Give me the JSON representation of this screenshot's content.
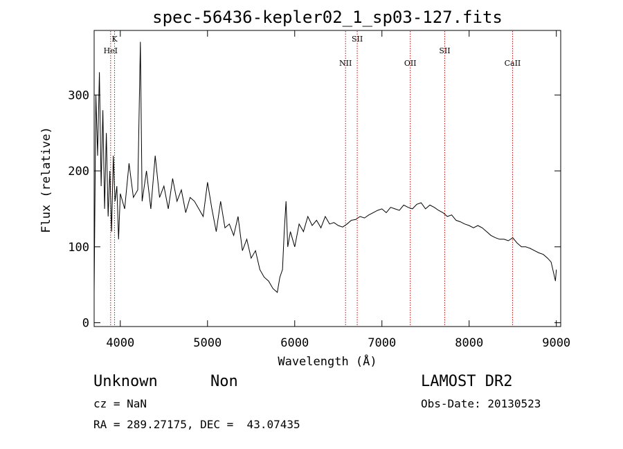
{
  "chart_data": {
    "type": "line",
    "title": "spec-56436-kepler02_1_sp03-127.fits",
    "xlabel": "Wavelength (Å)",
    "ylabel": "Flux (relative)",
    "xlim": [
      3700,
      9050
    ],
    "ylim": [
      -5,
      385
    ],
    "x_ticks": [
      4000,
      5000,
      6000,
      7000,
      8000,
      9000
    ],
    "y_ticks": [
      0,
      100,
      200,
      300
    ],
    "grid": false,
    "series": [
      {
        "x": [
          3700,
          3720,
          3740,
          3760,
          3780,
          3800,
          3820,
          3840,
          3860,
          3880,
          3900,
          3920,
          3940,
          3960,
          3980,
          4000,
          4050,
          4100,
          4150,
          4200,
          4230,
          4250,
          4300,
          4350,
          4400,
          4450,
          4500,
          4550,
          4600,
          4650,
          4700,
          4750,
          4800,
          4850,
          4900,
          4950,
          5000,
          5050,
          5100,
          5150,
          5200,
          5250,
          5300,
          5350,
          5400,
          5450,
          5500,
          5550,
          5600,
          5650,
          5700,
          5750,
          5800,
          5830,
          5860,
          5880,
          5900,
          5920,
          5950,
          6000,
          6050,
          6100,
          6150,
          6200,
          6250,
          6300,
          6350,
          6400,
          6450,
          6500,
          6550,
          6600,
          6650,
          6700,
          6750,
          6800,
          6850,
          6900,
          6950,
          7000,
          7050,
          7100,
          7150,
          7200,
          7250,
          7300,
          7350,
          7400,
          7450,
          7500,
          7550,
          7600,
          7650,
          7700,
          7750,
          7800,
          7850,
          7900,
          7950,
          8000,
          8050,
          8100,
          8150,
          8200,
          8250,
          8300,
          8350,
          8400,
          8450,
          8500,
          8550,
          8600,
          8650,
          8700,
          8750,
          8800,
          8850,
          8900,
          8940,
          8970,
          8990,
          9000
        ],
        "y": [
          40,
          300,
          220,
          330,
          180,
          280,
          150,
          250,
          140,
          200,
          120,
          220,
          160,
          180,
          110,
          170,
          150,
          210,
          165,
          175,
          370,
          160,
          200,
          150,
          220,
          165,
          180,
          150,
          190,
          160,
          175,
          145,
          165,
          160,
          150,
          140,
          185,
          150,
          120,
          160,
          125,
          130,
          115,
          140,
          95,
          110,
          85,
          95,
          70,
          60,
          55,
          45,
          40,
          60,
          70,
          120,
          160,
          100,
          120,
          100,
          130,
          120,
          140,
          128,
          135,
          125,
          140,
          130,
          132,
          128,
          126,
          130,
          135,
          136,
          140,
          138,
          142,
          145,
          148,
          150,
          145,
          152,
          150,
          148,
          155,
          152,
          150,
          156,
          158,
          150,
          155,
          152,
          148,
          145,
          140,
          142,
          135,
          133,
          130,
          128,
          125,
          128,
          125,
          120,
          115,
          112,
          110,
          110,
          108,
          112,
          105,
          100,
          100,
          98,
          95,
          92,
          90,
          85,
          80,
          65,
          55,
          70
        ]
      }
    ],
    "line_markers": [
      {
        "label": "K",
        "x": 3934,
        "row": 0
      },
      {
        "label": "HeI",
        "x": 3889,
        "row": 1
      },
      {
        "label": "NII",
        "x": 6583,
        "row": 2
      },
      {
        "label": "SII",
        "x": 6717,
        "row": 0
      },
      {
        "label": "OII",
        "x": 7325,
        "row": 2
      },
      {
        "label": "SII",
        "x": 7720,
        "row": 1
      },
      {
        "label": "CaII",
        "x": 8498,
        "row": 2
      }
    ],
    "colors": {
      "line": "#000000",
      "marker": "#cc0000"
    }
  },
  "info": {
    "class": "Unknown",
    "subclass": "Non",
    "survey": "LAMOST DR2",
    "cz": "cz = NaN",
    "obs_date": "Obs-Date: 20130523",
    "coords": "RA = 289.27175, DEC =  43.07435"
  }
}
